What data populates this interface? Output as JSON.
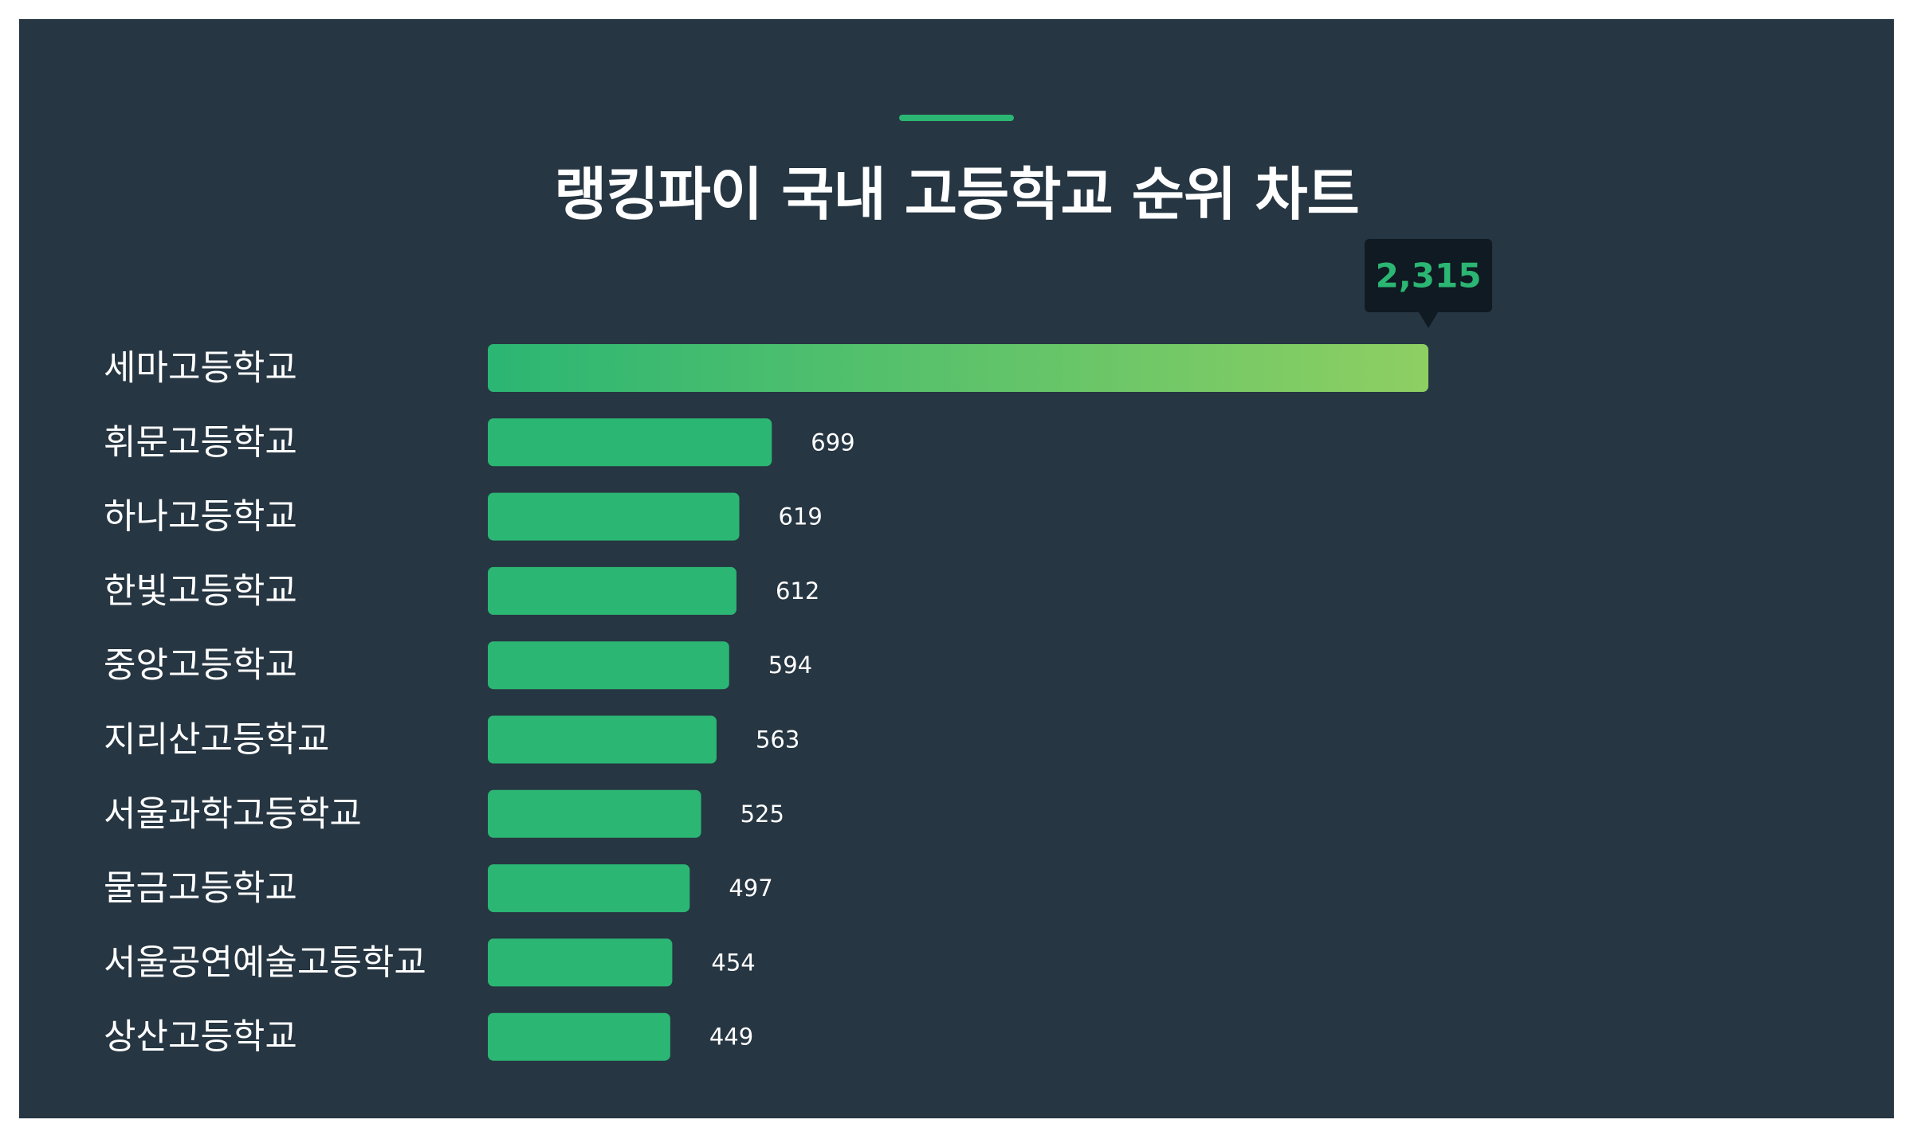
{
  "title": "랭킹파이 국내 고등학교 순위 차트",
  "colors": {
    "background": "#263642",
    "bar": "#2BB673",
    "accent": "#2BB673",
    "highlight_start": "#2BB673",
    "highlight_end": "#8ECF62",
    "tooltip_bg": "#0F1A22",
    "tooltip_text": "#2BB673"
  },
  "chart_data": {
    "type": "bar",
    "orientation": "horizontal",
    "categories": [
      "세마고등학교",
      "휘문고등학교",
      "하나고등학교",
      "한빛고등학교",
      "중앙고등학교",
      "지리산고등학교",
      "서울과학고등학교",
      "물금고등학교",
      "서울공연예술고등학교",
      "상산고등학교"
    ],
    "values": [
      2315,
      699,
      619,
      612,
      594,
      563,
      525,
      497,
      454,
      449
    ],
    "value_labels": [
      "2,315",
      "699",
      "619",
      "612",
      "594",
      "563",
      "525",
      "497",
      "454",
      "449"
    ],
    "highlight_index": 0,
    "grid": false,
    "legend": "none"
  }
}
